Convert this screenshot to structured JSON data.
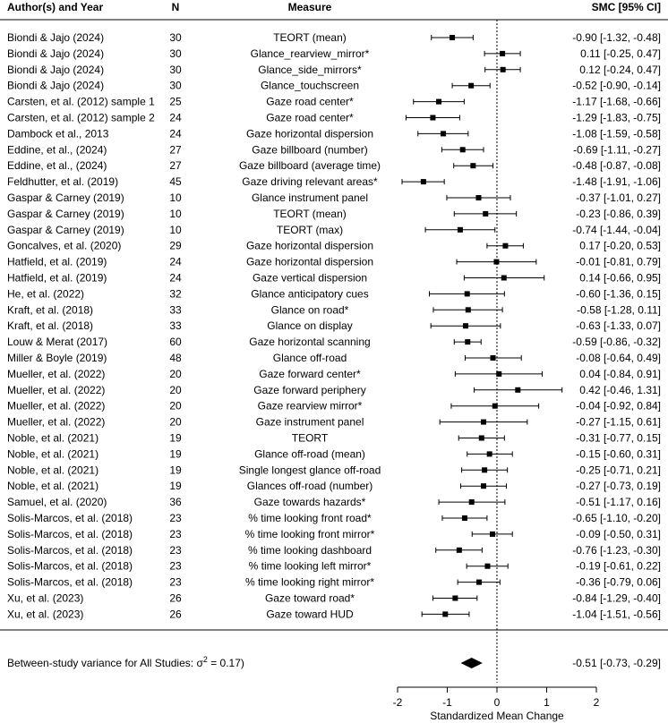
{
  "chart_data": {
    "type": "forest",
    "columns": {
      "study": "Author(s) and Year",
      "n": "N",
      "measure": "Measure",
      "effect": "SMC [95% CI]"
    },
    "rows": [
      {
        "study": "Biondi & Jajo (2024)",
        "n": "30",
        "measure": "TEORT (mean)",
        "est": -0.9,
        "lo": -1.32,
        "hi": -0.48,
        "label": "-0.90 [-1.32, -0.48]"
      },
      {
        "study": "Biondi & Jajo (2024)",
        "n": "30",
        "measure": "Glance_rearview_mirror*",
        "est": 0.11,
        "lo": -0.25,
        "hi": 0.47,
        "label": "0.11 [-0.25, 0.47]"
      },
      {
        "study": "Biondi & Jajo (2024)",
        "n": "30",
        "measure": "Glance_side_mirrors*",
        "est": 0.12,
        "lo": -0.24,
        "hi": 0.47,
        "label": "0.12 [-0.24, 0.47]"
      },
      {
        "study": "Biondi & Jajo (2024)",
        "n": "30",
        "measure": "Glance_touchscreen",
        "est": -0.52,
        "lo": -0.9,
        "hi": -0.14,
        "label": "-0.52 [-0.90, -0.14]"
      },
      {
        "study": "Carsten, et al. (2012) sample 1",
        "n": "25",
        "measure": "Gaze road center*",
        "est": -1.17,
        "lo": -1.68,
        "hi": -0.66,
        "label": "-1.17 [-1.68, -0.66]"
      },
      {
        "study": "Carsten, et al. (2012) sample 2",
        "n": "24",
        "measure": "Gaze road center*",
        "est": -1.29,
        "lo": -1.83,
        "hi": -0.75,
        "label": "-1.29 [-1.83, -0.75]"
      },
      {
        "study": "Dambock et al., 2013",
        "n": "24",
        "measure": "Gaze horizontal dispersion",
        "est": -1.08,
        "lo": -1.59,
        "hi": -0.58,
        "label": "-1.08 [-1.59, -0.58]"
      },
      {
        "study": "Eddine, et al., (2024)",
        "n": "27",
        "measure": "Gaze billboard (number)",
        "est": -0.69,
        "lo": -1.11,
        "hi": -0.27,
        "label": "-0.69 [-1.11, -0.27]"
      },
      {
        "study": "Eddine, et al., (2024)",
        "n": "27",
        "measure": "Gaze billboard (average time)",
        "est": -0.48,
        "lo": -0.87,
        "hi": -0.08,
        "label": "-0.48 [-0.87, -0.08]"
      },
      {
        "study": "Feldhutter, et al. (2019)",
        "n": "45",
        "measure": "Gaze driving relevant areas*",
        "est": -1.48,
        "lo": -1.91,
        "hi": -1.06,
        "label": "-1.48 [-1.91, -1.06]"
      },
      {
        "study": "Gaspar & Carney (2019)",
        "n": "10",
        "measure": "Glance instrument panel",
        "est": -0.37,
        "lo": -1.01,
        "hi": 0.27,
        "label": "-0.37 [-1.01, 0.27]"
      },
      {
        "study": "Gaspar & Carney (2019)",
        "n": "10",
        "measure": "TEORT (mean)",
        "est": -0.23,
        "lo": -0.86,
        "hi": 0.39,
        "label": "-0.23 [-0.86, 0.39]"
      },
      {
        "study": "Gaspar & Carney (2019)",
        "n": "10",
        "measure": "TEORT (max)",
        "est": -0.74,
        "lo": -1.44,
        "hi": -0.04,
        "label": "-0.74 [-1.44, -0.04]"
      },
      {
        "study": "Goncalves, et al. (2020)",
        "n": "29",
        "measure": "Gaze horizontal dispersion",
        "est": 0.17,
        "lo": -0.2,
        "hi": 0.53,
        "label": "0.17 [-0.20, 0.53]"
      },
      {
        "study": "Hatfield, et al. (2019)",
        "n": "24",
        "measure": "Gaze horizontal dispersion",
        "est": -0.01,
        "lo": -0.81,
        "hi": 0.79,
        "label": "-0.01 [-0.81, 0.79]"
      },
      {
        "study": "Hatfield, et al. (2019)",
        "n": "24",
        "measure": "Gaze vertical dispersion",
        "est": 0.14,
        "lo": -0.66,
        "hi": 0.95,
        "label": "0.14 [-0.66, 0.95]"
      },
      {
        "study": "He, et al. (2022)",
        "n": "32",
        "measure": "Glance anticipatory cues",
        "est": -0.6,
        "lo": -1.36,
        "hi": 0.15,
        "label": "-0.60 [-1.36, 0.15]"
      },
      {
        "study": "Kraft, et al. (2018)",
        "n": "33",
        "measure": "Glance on road*",
        "est": -0.58,
        "lo": -1.28,
        "hi": 0.11,
        "label": "-0.58 [-1.28, 0.11]"
      },
      {
        "study": "Kraft, et al. (2018)",
        "n": "33",
        "measure": "Glance on display",
        "est": -0.63,
        "lo": -1.33,
        "hi": 0.07,
        "label": "-0.63 [-1.33, 0.07]"
      },
      {
        "study": "Louw & Merat (2017)",
        "n": "60",
        "measure": "Gaze horizontal scanning",
        "est": -0.59,
        "lo": -0.86,
        "hi": -0.32,
        "label": "-0.59 [-0.86, -0.32]"
      },
      {
        "study": "Miller & Boyle (2019)",
        "n": "48",
        "measure": "Glance off-road",
        "est": -0.08,
        "lo": -0.64,
        "hi": 0.49,
        "label": "-0.08 [-0.64, 0.49]"
      },
      {
        "study": "Mueller, et al. (2022)",
        "n": "20",
        "measure": "Gaze forward center*",
        "est": 0.04,
        "lo": -0.84,
        "hi": 0.91,
        "label": "0.04 [-0.84, 0.91]"
      },
      {
        "study": "Mueller, et al. (2022)",
        "n": "20",
        "measure": "Gaze forward periphery",
        "est": 0.42,
        "lo": -0.46,
        "hi": 1.31,
        "label": "0.42 [-0.46, 1.31]"
      },
      {
        "study": "Mueller, et al. (2022)",
        "n": "20",
        "measure": "Gaze rearview mirror*",
        "est": -0.04,
        "lo": -0.92,
        "hi": 0.84,
        "label": "-0.04 [-0.92, 0.84]"
      },
      {
        "study": "Mueller, et al. (2022)",
        "n": "20",
        "measure": "Gaze instrument panel",
        "est": -0.27,
        "lo": -1.15,
        "hi": 0.61,
        "label": "-0.27 [-1.15, 0.61]"
      },
      {
        "study": "Noble, et al. (2021)",
        "n": "19",
        "measure": "TEORT",
        "est": -0.31,
        "lo": -0.77,
        "hi": 0.15,
        "label": "-0.31 [-0.77, 0.15]"
      },
      {
        "study": "Noble, et al. (2021)",
        "n": "19",
        "measure": "Glance off-road (mean)",
        "est": -0.15,
        "lo": -0.6,
        "hi": 0.31,
        "label": "-0.15 [-0.60, 0.31]"
      },
      {
        "study": "Noble, et al. (2021)",
        "n": "19",
        "measure": "Single longest glance off-road",
        "est": -0.25,
        "lo": -0.71,
        "hi": 0.21,
        "label": "-0.25 [-0.71, 0.21]"
      },
      {
        "study": "Noble, et al. (2021)",
        "n": "19",
        "measure": "Glances off-road (number)",
        "est": -0.27,
        "lo": -0.73,
        "hi": 0.19,
        "label": "-0.27 [-0.73, 0.19]"
      },
      {
        "study": "Samuel, et al. (2020)",
        "n": "36",
        "measure": "Gaze towards hazards*",
        "est": -0.51,
        "lo": -1.17,
        "hi": 0.16,
        "label": "-0.51 [-1.17, 0.16]"
      },
      {
        "study": "Solis-Marcos, et al. (2018)",
        "n": "23",
        "measure": "% time looking front road*",
        "est": -0.65,
        "lo": -1.1,
        "hi": -0.2,
        "label": "-0.65 [-1.10, -0.20]"
      },
      {
        "study": "Solis-Marcos, et al. (2018)",
        "n": "23",
        "measure": "% time looking front mirror*",
        "est": -0.09,
        "lo": -0.5,
        "hi": 0.31,
        "label": "-0.09 [-0.50, 0.31]"
      },
      {
        "study": "Solis-Marcos, et al. (2018)",
        "n": "23",
        "measure": "% time looking dashboard",
        "est": -0.76,
        "lo": -1.23,
        "hi": -0.3,
        "label": "-0.76 [-1.23, -0.30]"
      },
      {
        "study": "Solis-Marcos, et al. (2018)",
        "n": "23",
        "measure": "% time looking left mirror*",
        "est": -0.19,
        "lo": -0.61,
        "hi": 0.22,
        "label": "-0.19 [-0.61, 0.22]"
      },
      {
        "study": "Solis-Marcos, et al. (2018)",
        "n": "23",
        "measure": "% time looking right mirror*",
        "est": -0.36,
        "lo": -0.79,
        "hi": 0.06,
        "label": "-0.36 [-0.79, 0.06]"
      },
      {
        "study": "Xu, et al. (2023)",
        "n": "26",
        "measure": "Gaze toward road*",
        "est": -0.84,
        "lo": -1.29,
        "hi": -0.4,
        "label": "-0.84 [-1.29, -0.40]"
      },
      {
        "study": "Xu, et al. (2023)",
        "n": "26",
        "measure": "Gaze toward HUD",
        "est": -1.04,
        "lo": -1.51,
        "hi": -0.56,
        "label": "-1.04 [-1.51, -0.56]"
      }
    ],
    "summary": {
      "label_prefix": "Between-study variance for All Studies: σ",
      "label_sup": "2",
      "label_suffix": " = 0.17)",
      "est": -0.51,
      "lo": -0.73,
      "hi": -0.29,
      "effect_label": "-0.51 [-0.73, -0.29]"
    },
    "x_axis": {
      "label": "Standardized Mean Change",
      "ticks": [
        -2,
        -1,
        0,
        1,
        2
      ],
      "tick_labels": [
        "-2",
        "-1",
        "0",
        "1",
        "2"
      ],
      "range": [
        -2,
        2
      ]
    },
    "reference_line": 0
  }
}
